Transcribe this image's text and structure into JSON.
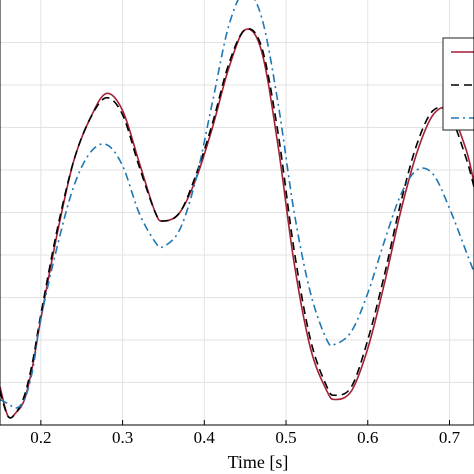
{
  "chart_data": {
    "type": "line",
    "title": "",
    "xlabel": "Time [s]",
    "ylabel": "",
    "xlim": [
      0.15,
      0.73
    ],
    "ylim": [
      0,
      1
    ],
    "grid": true,
    "legend_position": "top-right",
    "x_ticks": [
      0.2,
      0.3,
      0.4,
      0.5,
      0.6,
      0.7
    ],
    "x_tick_labels": [
      "0.2",
      "0.3",
      "0.4",
      "0.5",
      "0.6",
      "0.7"
    ],
    "series": [
      {
        "style": "solid",
        "color": "#a31f34",
        "x": [
          0.15,
          0.16,
          0.17,
          0.18,
          0.19,
          0.2,
          0.22,
          0.24,
          0.26,
          0.28,
          0.3,
          0.32,
          0.34,
          0.35,
          0.37,
          0.39,
          0.41,
          0.43,
          0.45,
          0.47,
          0.49,
          0.51,
          0.53,
          0.55,
          0.56,
          0.58,
          0.6,
          0.62,
          0.64,
          0.66,
          0.68,
          0.7,
          0.72,
          0.73
        ],
        "y": [
          0.09,
          0.02,
          0.03,
          0.06,
          0.14,
          0.25,
          0.45,
          0.62,
          0.72,
          0.78,
          0.74,
          0.62,
          0.5,
          0.48,
          0.5,
          0.58,
          0.7,
          0.84,
          0.93,
          0.88,
          0.66,
          0.38,
          0.18,
          0.08,
          0.06,
          0.08,
          0.18,
          0.33,
          0.5,
          0.64,
          0.73,
          0.74,
          0.65,
          0.57
        ]
      },
      {
        "style": "dashed",
        "color": "#000000",
        "x": [
          0.15,
          0.16,
          0.17,
          0.18,
          0.19,
          0.2,
          0.22,
          0.24,
          0.26,
          0.28,
          0.3,
          0.32,
          0.34,
          0.35,
          0.37,
          0.39,
          0.41,
          0.43,
          0.45,
          0.47,
          0.49,
          0.51,
          0.53,
          0.55,
          0.56,
          0.58,
          0.6,
          0.62,
          0.64,
          0.66,
          0.68,
          0.7,
          0.72,
          0.73
        ],
        "y": [
          0.08,
          0.02,
          0.03,
          0.07,
          0.15,
          0.26,
          0.46,
          0.62,
          0.72,
          0.77,
          0.73,
          0.61,
          0.5,
          0.48,
          0.5,
          0.59,
          0.71,
          0.85,
          0.93,
          0.89,
          0.69,
          0.41,
          0.2,
          0.09,
          0.07,
          0.09,
          0.2,
          0.35,
          0.52,
          0.66,
          0.74,
          0.73,
          0.63,
          0.56
        ]
      },
      {
        "style": "dash-dot",
        "color": "#1f77b4",
        "x": [
          0.15,
          0.16,
          0.17,
          0.18,
          0.19,
          0.2,
          0.22,
          0.24,
          0.26,
          0.28,
          0.3,
          0.32,
          0.34,
          0.35,
          0.37,
          0.39,
          0.41,
          0.43,
          0.45,
          0.47,
          0.49,
          0.51,
          0.53,
          0.55,
          0.56,
          0.58,
          0.6,
          0.62,
          0.64,
          0.66,
          0.68,
          0.7,
          0.72,
          0.73
        ],
        "y": [
          0.06,
          0.05,
          0.04,
          0.06,
          0.13,
          0.25,
          0.42,
          0.56,
          0.64,
          0.66,
          0.61,
          0.5,
          0.43,
          0.42,
          0.46,
          0.58,
          0.76,
          0.94,
          1.02,
          0.96,
          0.76,
          0.5,
          0.31,
          0.2,
          0.19,
          0.22,
          0.31,
          0.43,
          0.54,
          0.6,
          0.59,
          0.51,
          0.41,
          0.36
        ]
      }
    ]
  }
}
